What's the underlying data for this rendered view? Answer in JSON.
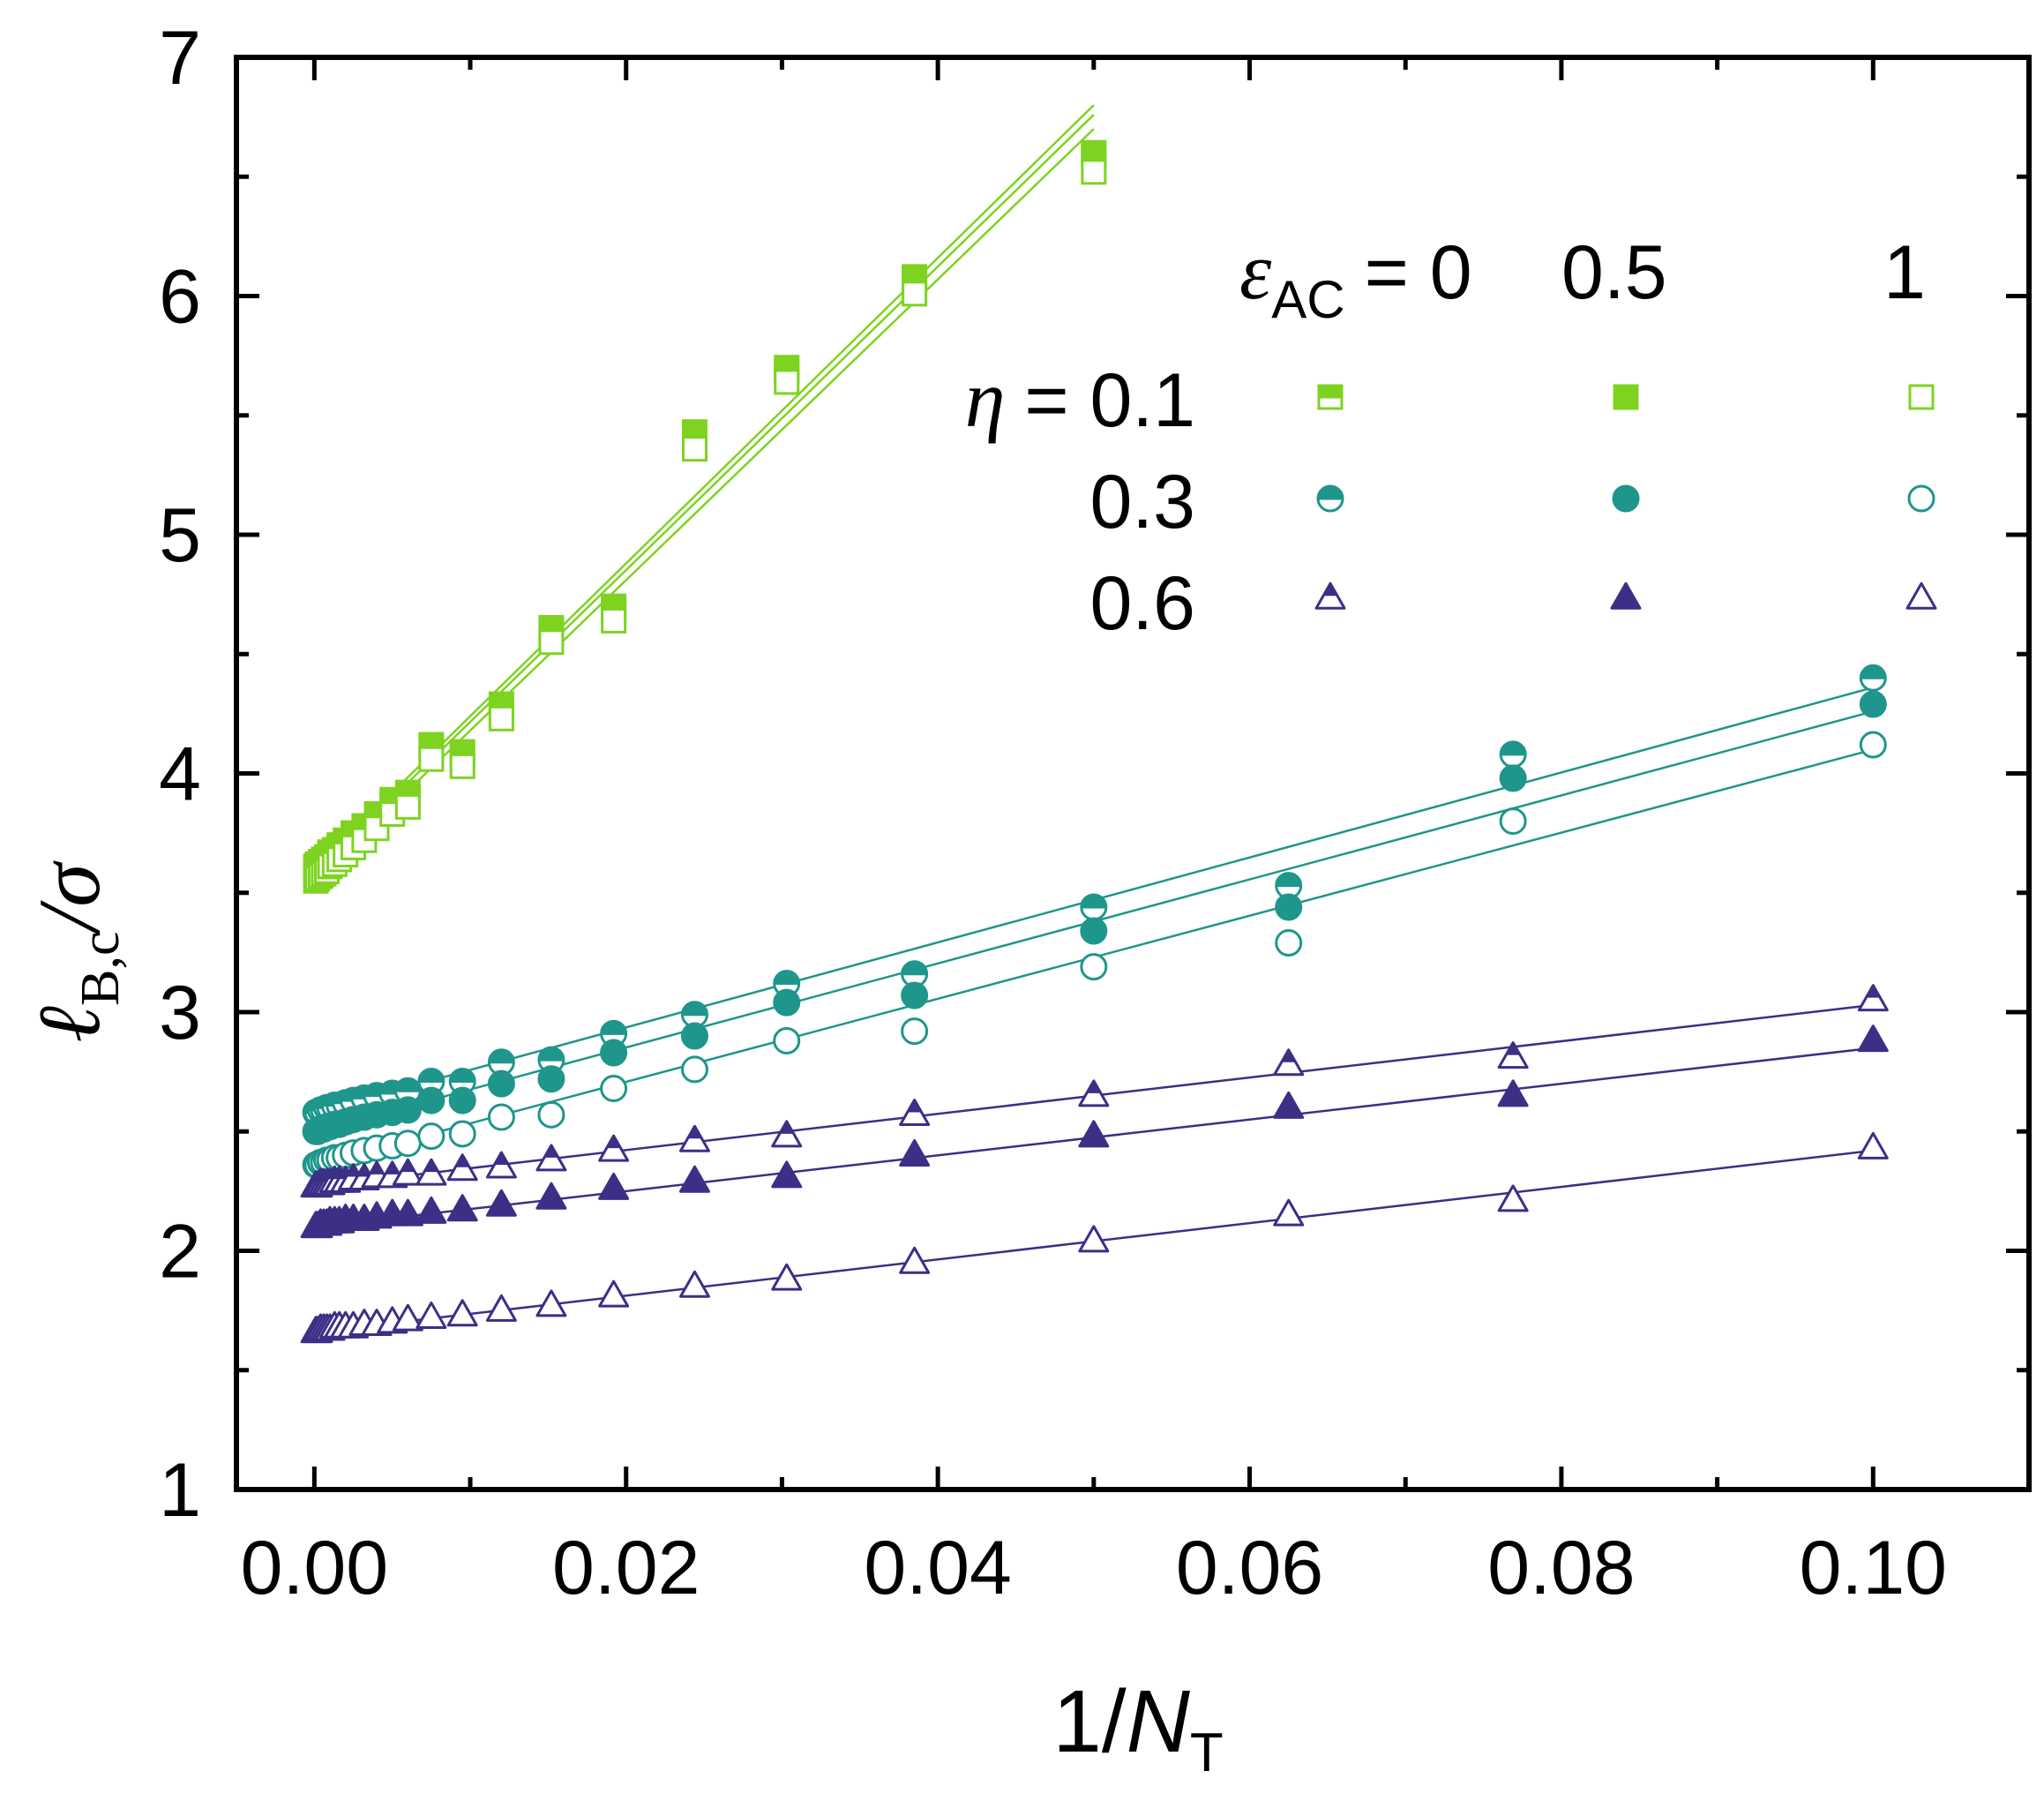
{
  "chart_data": {
    "type": "scatter",
    "xlabel": {
      "main": "1/",
      "var": "N",
      "sub": "T"
    },
    "ylabel": {
      "main": "ℓ",
      "sub": "B,c",
      "tail": "/σ"
    },
    "xlim": [
      -0.005,
      0.11
    ],
    "ylim": [
      1,
      7
    ],
    "xticks": [
      0.0,
      0.02,
      0.04,
      0.06,
      0.08,
      0.1
    ],
    "xtick_labels": [
      "0.00",
      "0.02",
      "0.04",
      "0.06",
      "0.08",
      "0.10"
    ],
    "yticks": [
      1,
      2,
      3,
      4,
      5,
      6,
      7
    ],
    "ytick_labels": [
      "1",
      "2",
      "3",
      "4",
      "5",
      "6",
      "7"
    ],
    "legend": {
      "eps_symbol": "ε",
      "eps_sub": "AC",
      "eps_prefix": "= 0",
      "eps_values": [
        "0.5",
        "1"
      ],
      "eta_symbol": "η",
      "eta_prefix": "= 0.1",
      "eta_rows": [
        "0.3",
        "0.6"
      ]
    },
    "colors": {
      "eta_0.1": "#7ed321",
      "eta_0.3": "#1f968b",
      "eta_0.6": "#3b2f86"
    },
    "x": [
      0.0001,
      0.0002,
      0.0004,
      0.0006,
      0.0008,
      0.001,
      0.0013,
      0.0016,
      0.002,
      0.0025,
      0.0032,
      0.004,
      0.005,
      0.006,
      0.0075,
      0.0095,
      0.012,
      0.0152,
      0.0192,
      0.0244,
      0.0303,
      0.0385,
      0.05,
      0.0625,
      0.0769,
      0.1
    ],
    "series": [
      {
        "name": "eta=0.1, eps=0",
        "eta": "0.1",
        "eps": "0",
        "marker": "square",
        "fill": "half",
        "xmax": 0.05,
        "values": [
          3.61,
          3.62,
          3.63,
          3.64,
          3.65,
          3.67,
          3.68,
          3.7,
          3.72,
          3.75,
          3.78,
          3.83,
          3.89,
          3.92,
          4.12,
          4.09,
          4.29,
          4.61,
          4.7,
          5.43,
          5.7,
          6.08,
          6.6
        ],
        "fit": [
          3.6,
          64.0
        ]
      },
      {
        "name": "eta=0.1, eps=0.5",
        "eta": "0.1",
        "eps": "0.5",
        "marker": "square",
        "fill": "full",
        "xmax": 0.05,
        "values": [
          3.59,
          3.6,
          3.61,
          3.62,
          3.63,
          3.65,
          3.66,
          3.68,
          3.7,
          3.73,
          3.76,
          3.81,
          3.87,
          3.9,
          4.1,
          4.07,
          4.27,
          4.59,
          4.68,
          5.4,
          5.68,
          6.06,
          6.58
        ],
        "fit": [
          3.58,
          63.6
        ]
      },
      {
        "name": "eta=0.1, eps=1",
        "eta": "0.1",
        "eps": "1",
        "marker": "square",
        "fill": "none",
        "xmax": 0.05,
        "values": [
          3.55,
          3.56,
          3.57,
          3.58,
          3.59,
          3.61,
          3.62,
          3.64,
          3.66,
          3.69,
          3.72,
          3.77,
          3.83,
          3.86,
          4.06,
          4.03,
          4.23,
          4.55,
          4.64,
          5.36,
          5.64,
          6.01,
          6.52
        ],
        "fit": [
          3.55,
          63.0
        ]
      },
      {
        "name": "eta=0.3, eps=0",
        "eta": "0.3",
        "eps": "0",
        "marker": "circle",
        "fill": "half",
        "xmax": 0.1,
        "values": [
          2.58,
          2.58,
          2.59,
          2.59,
          2.6,
          2.6,
          2.61,
          2.61,
          2.62,
          2.63,
          2.64,
          2.65,
          2.66,
          2.67,
          2.71,
          2.71,
          2.79,
          2.8,
          2.91,
          2.99,
          3.12,
          3.16,
          3.44,
          3.53,
          4.08,
          4.4
        ],
        "fit": [
          2.58,
          17.8
        ]
      },
      {
        "name": "eta=0.3, eps=0.5",
        "eta": "0.3",
        "eps": "0.5",
        "marker": "circle",
        "fill": "full",
        "xmax": 0.1,
        "values": [
          2.5,
          2.5,
          2.51,
          2.51,
          2.52,
          2.52,
          2.53,
          2.53,
          2.54,
          2.55,
          2.56,
          2.57,
          2.58,
          2.59,
          2.63,
          2.63,
          2.7,
          2.72,
          2.83,
          2.9,
          3.04,
          3.07,
          3.34,
          3.44,
          3.98,
          4.29
        ],
        "fit": [
          2.5,
          17.6
        ]
      },
      {
        "name": "eta=0.3, eps=1",
        "eta": "0.3",
        "eps": "1",
        "marker": "circle",
        "fill": "none",
        "xmax": 0.1,
        "values": [
          2.36,
          2.36,
          2.37,
          2.37,
          2.38,
          2.38,
          2.39,
          2.39,
          2.4,
          2.41,
          2.42,
          2.43,
          2.44,
          2.45,
          2.48,
          2.49,
          2.56,
          2.57,
          2.68,
          2.76,
          2.88,
          2.92,
          3.19,
          3.29,
          3.8,
          4.12
        ],
        "fit": [
          2.36,
          17.4
        ]
      },
      {
        "name": "eta=0.6, eps=0",
        "eta": "0.6",
        "eps": "0",
        "marker": "triangle",
        "fill": "half",
        "xmax": 0.1,
        "values": [
          2.27,
          2.27,
          2.28,
          2.28,
          2.28,
          2.28,
          2.29,
          2.29,
          2.29,
          2.3,
          2.3,
          2.31,
          2.31,
          2.32,
          2.32,
          2.34,
          2.35,
          2.38,
          2.42,
          2.46,
          2.48,
          2.57,
          2.65,
          2.78,
          2.81,
          3.05
        ],
        "fit": [
          2.27,
          7.6
        ]
      },
      {
        "name": "eta=0.6, eps=0.5",
        "eta": "0.6",
        "eps": "0.5",
        "marker": "triangle",
        "fill": "full",
        "xmax": 0.1,
        "values": [
          2.1,
          2.1,
          2.11,
          2.11,
          2.11,
          2.12,
          2.12,
          2.12,
          2.13,
          2.13,
          2.13,
          2.14,
          2.15,
          2.15,
          2.16,
          2.17,
          2.19,
          2.22,
          2.26,
          2.29,
          2.31,
          2.4,
          2.48,
          2.6,
          2.65,
          2.88
        ],
        "fit": [
          2.1,
          7.5
        ]
      },
      {
        "name": "eta=0.6, eps=1",
        "eta": "0.6",
        "eps": "1",
        "marker": "triangle",
        "fill": "none",
        "xmax": 0.1,
        "values": [
          1.66,
          1.66,
          1.67,
          1.67,
          1.67,
          1.67,
          1.68,
          1.68,
          1.68,
          1.68,
          1.69,
          1.69,
          1.7,
          1.71,
          1.72,
          1.73,
          1.75,
          1.77,
          1.81,
          1.85,
          1.88,
          1.95,
          2.04,
          2.15,
          2.21,
          2.43
        ],
        "fit": [
          1.66,
          7.6
        ]
      }
    ]
  }
}
